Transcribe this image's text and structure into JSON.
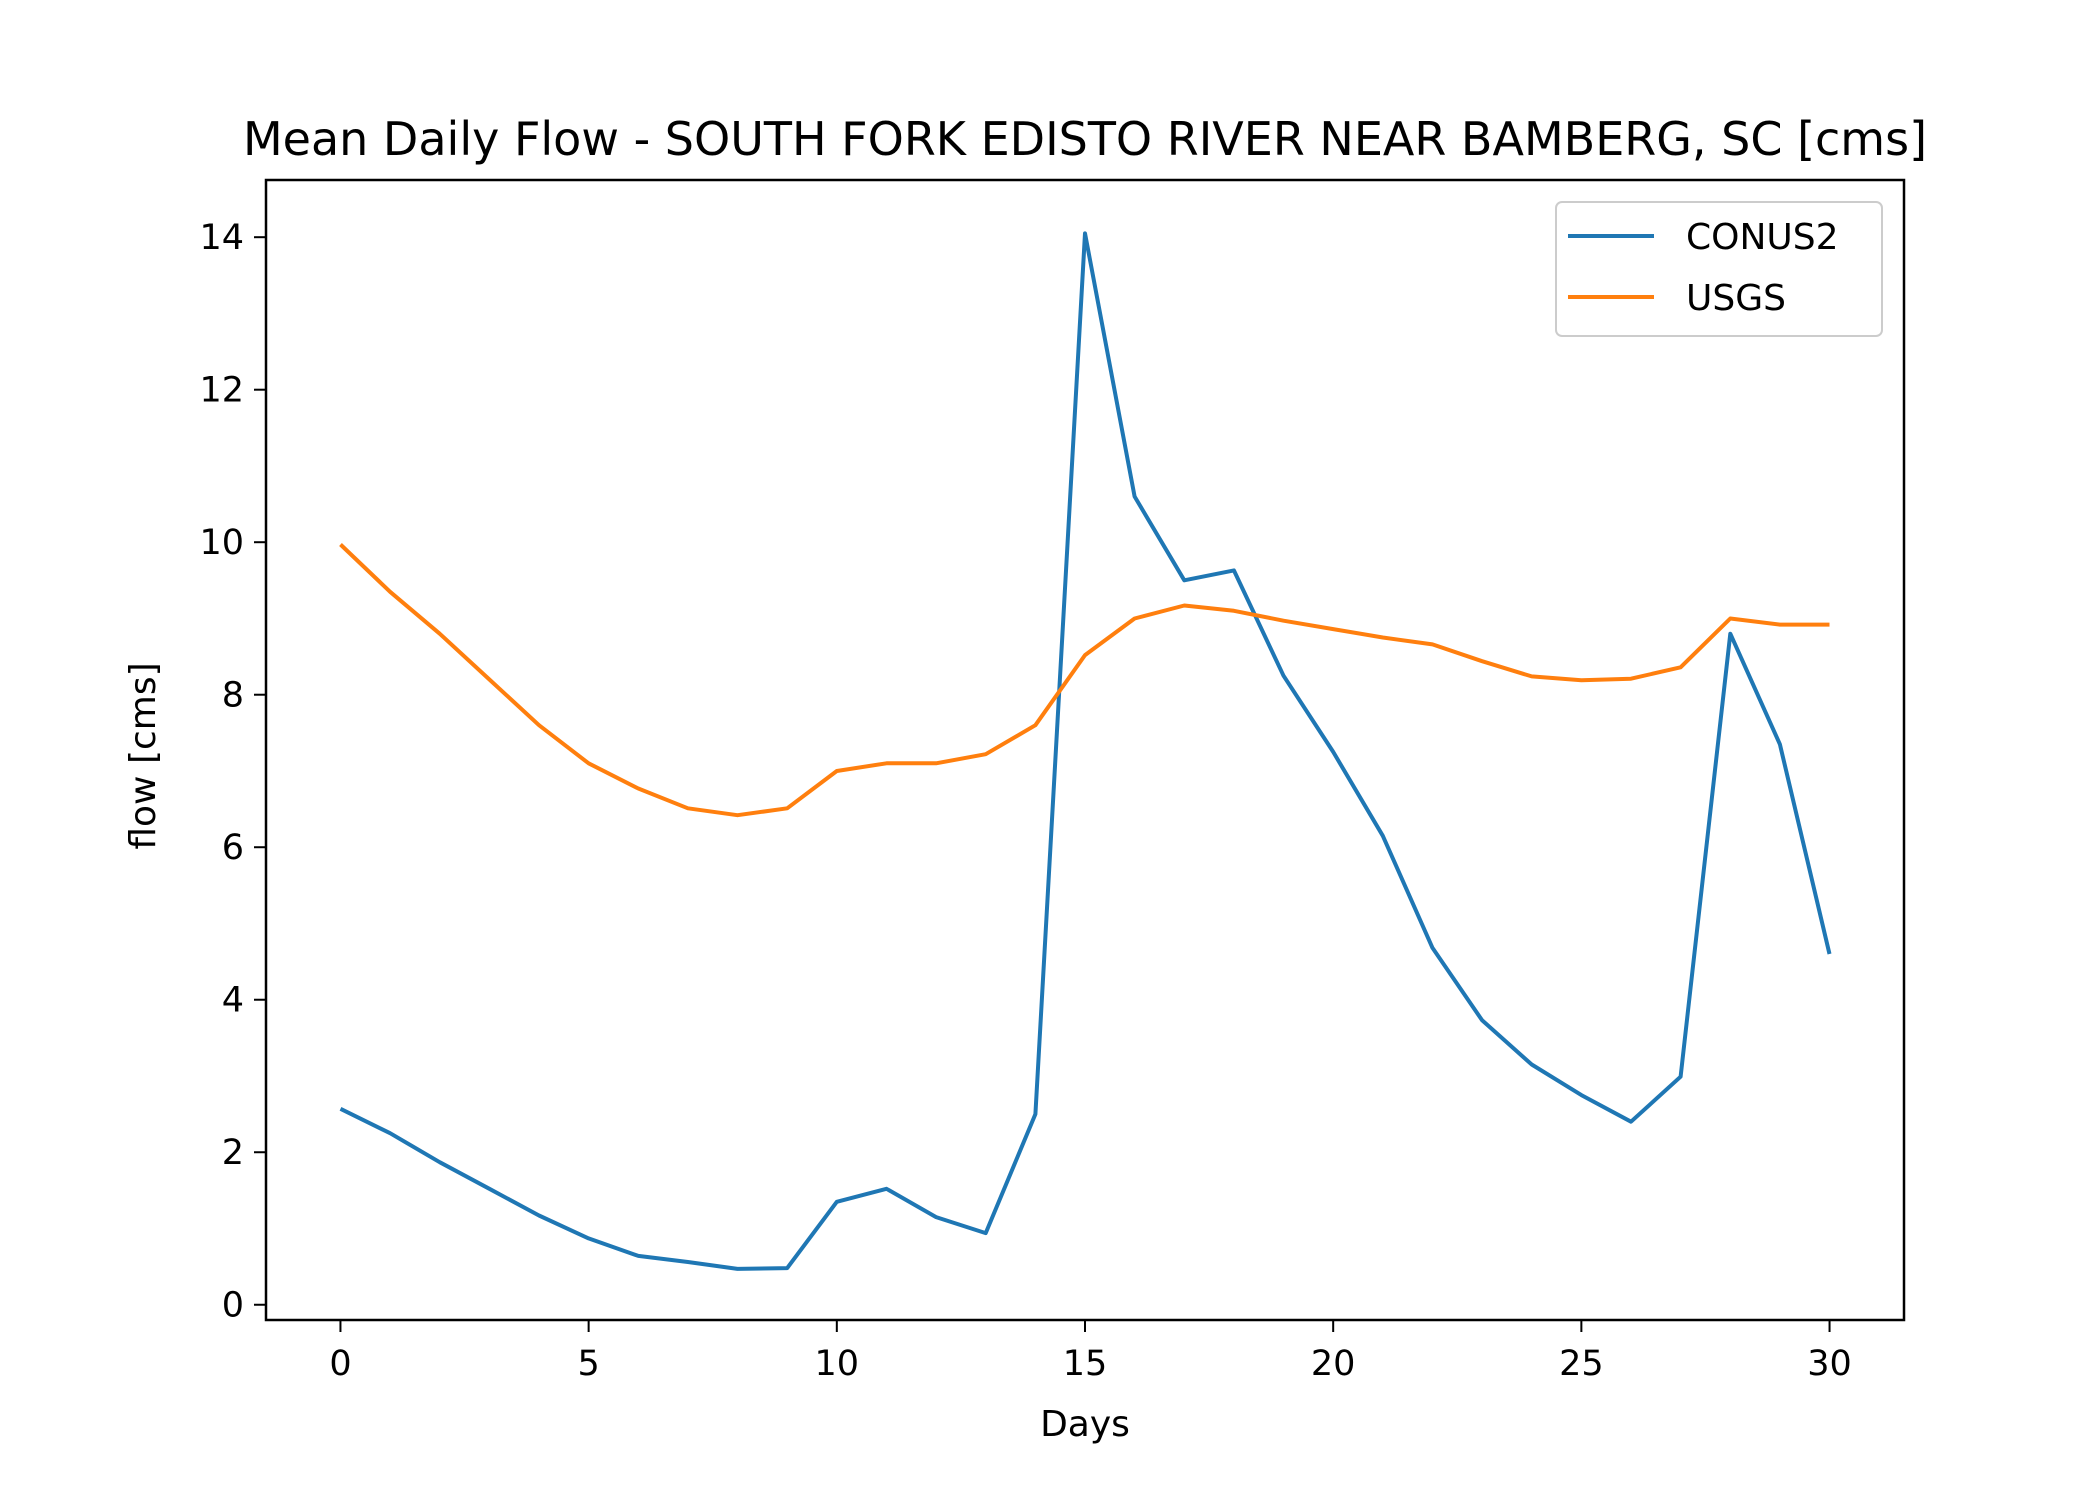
{
  "chart_data": {
    "type": "line",
    "title": "Mean Daily Flow - SOUTH FORK EDISTO RIVER NEAR BAMBERG, SC [cms]",
    "xlabel": "Days",
    "ylabel": "flow [cms]",
    "xlim": [
      -1.5,
      31.5
    ],
    "ylim": [
      -0.2,
      14.75
    ],
    "x_ticks": [
      0,
      5,
      10,
      15,
      20,
      25,
      30
    ],
    "y_ticks": [
      0,
      2,
      4,
      6,
      8,
      10,
      12,
      14
    ],
    "grid": false,
    "legend_position": "top-right",
    "x": [
      0,
      1,
      2,
      3,
      4,
      5,
      6,
      7,
      8,
      9,
      10,
      11,
      12,
      13,
      14,
      15,
      16,
      17,
      18,
      19,
      20,
      21,
      22,
      23,
      24,
      25,
      26,
      27,
      28,
      29,
      30
    ],
    "series": [
      {
        "name": "CONUS2",
        "color": "#1f77b4",
        "values": [
          2.57,
          2.25,
          1.87,
          1.52,
          1.17,
          0.87,
          0.64,
          0.56,
          0.47,
          0.48,
          1.35,
          1.52,
          1.15,
          0.94,
          2.5,
          14.05,
          10.6,
          9.5,
          9.63,
          8.25,
          7.25,
          6.15,
          4.68,
          3.73,
          3.15,
          2.75,
          2.4,
          2.99,
          8.8,
          7.35,
          4.6
        ]
      },
      {
        "name": "USGS",
        "color": "#ff7f0e",
        "values": [
          9.97,
          9.35,
          8.8,
          8.2,
          7.6,
          7.1,
          6.77,
          6.51,
          6.42,
          6.51,
          7.0,
          7.1,
          7.1,
          7.22,
          7.6,
          8.52,
          9.0,
          9.17,
          9.1,
          8.97,
          8.86,
          8.75,
          8.66,
          8.44,
          8.24,
          8.19,
          8.21,
          8.36,
          9.0,
          8.92,
          8.92
        ]
      }
    ]
  }
}
